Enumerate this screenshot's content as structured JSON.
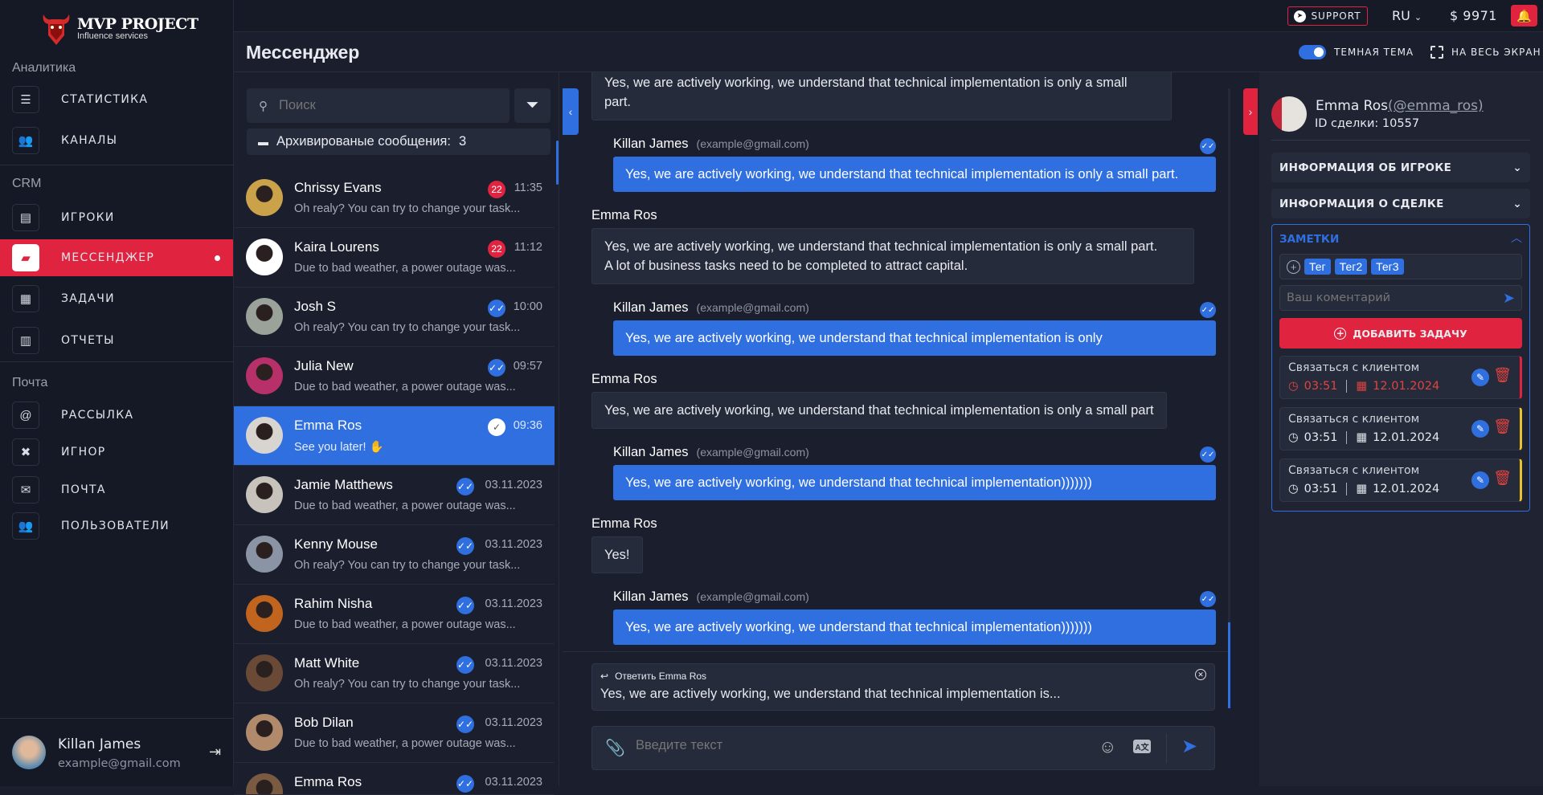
{
  "colors": {
    "accent": "#2f6fe0",
    "danger": "#e0243f",
    "warning": "#e6c22e",
    "bg": "#1b1f2d"
  },
  "brand": {
    "title": "MVP PROJECT",
    "subtitle": "Influence services"
  },
  "sidebar": {
    "sections": [
      {
        "label": "Аналитика",
        "items": [
          {
            "label": "СТАТИСТИКА",
            "icon": "bar-chart-icon"
          },
          {
            "label": "КАНАЛЫ",
            "icon": "users-icon"
          }
        ]
      },
      {
        "label": "CRM",
        "items": [
          {
            "label": "ИГРОКИ",
            "icon": "contacts-icon"
          },
          {
            "label": "МЕССЕНДЖЕР",
            "icon": "chat-icon",
            "active": true
          },
          {
            "label": "ЗАДАЧИ",
            "icon": "tasks-icon"
          },
          {
            "label": "ОТЧЕТЫ",
            "icon": "reports-icon"
          }
        ]
      },
      {
        "label": "Почта",
        "items": [
          {
            "label": "РАССЫЛКА",
            "icon": "at-icon"
          },
          {
            "label": "ИГНОР",
            "icon": "user-block-icon"
          },
          {
            "label": "ПОЧТА",
            "icon": "mail-icon"
          },
          {
            "label": "ПОЛЬЗОВАТЕЛИ",
            "icon": "users-icon"
          }
        ]
      }
    ],
    "user": {
      "name": "Killan James",
      "email": "example@gmail.com"
    }
  },
  "topbar": {
    "support": "SUPPORT",
    "language": "RU",
    "balance": "$ 9971"
  },
  "header": {
    "title": "Мессенджер",
    "dark_theme": "ТЕМНАЯ ТЕМА",
    "dark_theme_on": true,
    "fullscreen": "НА ВЕСЬ ЭКРАН"
  },
  "chat_list": {
    "search_placeholder": "Поиск",
    "archived_label": "Архивированые сообщения:",
    "archived_count": "3",
    "items": [
      {
        "name": "Chrissy Evans",
        "preview": "Oh realy? You can try to change your task...",
        "time": "11:35",
        "badge": "22",
        "avatar": "#c9a24a"
      },
      {
        "name": "Kaira Lourens",
        "preview": "Due to bad weather, a power outage was...",
        "time": "11:12",
        "badge": "22",
        "avatar": "#ffffff"
      },
      {
        "name": "Josh S",
        "preview": "Oh realy? You can try to change your task...",
        "time": "10:00",
        "status": "read",
        "avatar": "#9aa29a"
      },
      {
        "name": "Julia New",
        "preview": "Due to bad weather, a power outage was...",
        "time": "09:57",
        "status": "read",
        "avatar": "#b8306a"
      },
      {
        "name": "Emma Ros",
        "preview": "See you later! ✋",
        "time": "09:36",
        "status": "sent",
        "selected": true,
        "avatar": "#d8d4d0"
      },
      {
        "name": "Jamie Matthews",
        "preview": "Due to bad weather, a power outage was...",
        "time": "03.11.2023",
        "status": "read",
        "avatar": "#c8c2bc"
      },
      {
        "name": "Kenny Mouse",
        "preview": "Oh realy? You can try to change your task...",
        "time": "03.11.2023",
        "status": "read",
        "avatar": "#8a94a4"
      },
      {
        "name": "Rahim Nisha",
        "preview": "Due to bad weather, a power outage was...",
        "time": "03.11.2023",
        "status": "read",
        "avatar": "#c0641e"
      },
      {
        "name": "Matt White",
        "preview": "Oh realy? You can try to change your task...",
        "time": "03.11.2023",
        "status": "read",
        "avatar": "#6a4a36"
      },
      {
        "name": "Bob Dilan",
        "preview": "Due to bad weather, a power outage was...",
        "time": "03.11.2023",
        "status": "read",
        "avatar": "#b08a6a"
      },
      {
        "name": "Emma Ros",
        "preview": "",
        "time": "03.11.2023",
        "status": "read",
        "avatar": "#7a5a40"
      }
    ]
  },
  "messages": [
    {
      "dir": "in",
      "text": "Yes, we are actively working, we understand that technical implementation is only a small\npart.",
      "cut": true
    },
    {
      "dir": "out",
      "author": "Killan James",
      "email": "(example@gmail.com)",
      "text": "Yes, we are actively working, we understand that technical implementation is only a small part."
    },
    {
      "dir": "in",
      "author": "Emma Ros",
      "text": "Yes, we are actively working, we understand that technical implementation is only a small part.\nA lot of business tasks need to be completed to attract capital."
    },
    {
      "dir": "out",
      "author": "Killan James",
      "email": "(example@gmail.com)",
      "text": "Yes, we are actively working, we understand that technical implementation is only"
    },
    {
      "dir": "in",
      "author": "Emma Ros",
      "text": "Yes, we are actively working, we understand that technical implementation is only a small part"
    },
    {
      "dir": "out",
      "author": "Killan James",
      "email": "(example@gmail.com)",
      "text": "Yes, we are actively working, we understand that technical implementation)))))))"
    },
    {
      "dir": "in",
      "author": "Emma Ros",
      "text": "Yes!"
    },
    {
      "dir": "out",
      "author": "Killan James",
      "email": "(example@gmail.com)",
      "text": "Yes, we are actively working, we understand that technical implementation)))))))"
    }
  ],
  "composer": {
    "reply_label": "Ответить Emma Ros",
    "reply_text": "Yes, we are actively working, we understand that technical implementation is...",
    "placeholder": "Введите текст"
  },
  "details": {
    "name": "Emma Ros",
    "handle": "(@emma_ros)",
    "deal_id": "ID сделки: 10557",
    "player_info": "ИНФОРМАЦИЯ ОБ ИГРОКЕ",
    "deal_info": "ИНФОРМАЦИЯ О СДЕЛКЕ",
    "notes_title": "ЗАМЕТКИ",
    "tags": [
      "Тег",
      "Тег2",
      "Тег3"
    ],
    "comment_placeholder": "Ваш коментарий",
    "add_task": "ДОБАВИТЬ ЗАДАЧУ",
    "tasks": [
      {
        "title": "Связаться с клиентом",
        "time": "03:51",
        "date": "12.01.2024",
        "state": "overdue"
      },
      {
        "title": "Связаться с клиентом",
        "time": "03:51",
        "date": "12.01.2024",
        "state": "pending"
      },
      {
        "title": "Связаться с клиентом",
        "time": "03:51",
        "date": "12.01.2024",
        "state": "pending"
      }
    ]
  }
}
